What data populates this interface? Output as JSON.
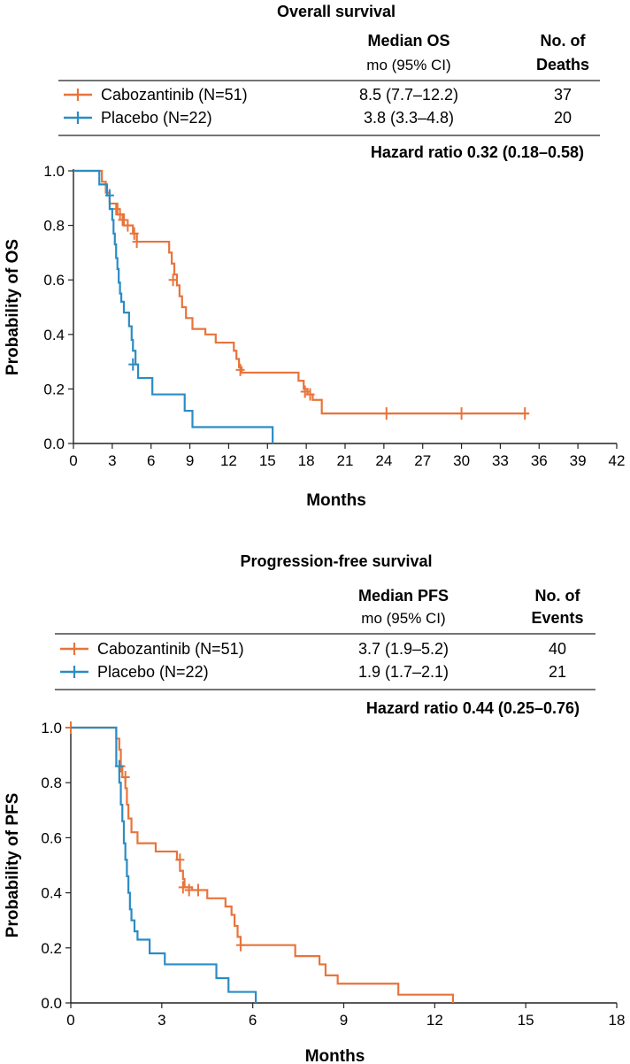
{
  "chart_data": [
    {
      "type": "line",
      "subtype": "kaplan-meier",
      "title": "Overall survival",
      "table": {
        "col1_header": "Median OS",
        "col1_sub": "mo (95% CI)",
        "col2_header_line1": "No. of",
        "col2_header_line2": "Deaths",
        "rows": [
          {
            "label": "Cabozantinib (N=51)",
            "median": "8.5 (7.7–12.2)",
            "count": "37",
            "color": "#E8743B"
          },
          {
            "label": "Placebo (N=22)",
            "median": "3.8 (3.3–4.8)",
            "count": "20",
            "color": "#2B8CC4"
          }
        ]
      },
      "hazard_ratio": "Hazard ratio 0.32 (0.18–0.58)",
      "xlabel": "Months",
      "ylabel": "Probability of OS",
      "xlim": [
        0,
        42
      ],
      "ylim": [
        0,
        1.0
      ],
      "xticks": [
        "0",
        "3",
        "6",
        "9",
        "12",
        "15",
        "18",
        "21",
        "24",
        "27",
        "30",
        "33",
        "36",
        "39",
        "42"
      ],
      "yticks": [
        "0.0",
        "0.2",
        "0.4",
        "0.6",
        "0.8",
        "1.0"
      ],
      "series": [
        {
          "name": "Cabozantinib (N=51)",
          "color": "#E8743B",
          "steps": [
            [
              0,
              1.0
            ],
            [
              2.2,
              0.96
            ],
            [
              2.5,
              0.92
            ],
            [
              2.8,
              0.88
            ],
            [
              3.4,
              0.84
            ],
            [
              3.9,
              0.8
            ],
            [
              4.6,
              0.77
            ],
            [
              4.9,
              0.74
            ],
            [
              7.4,
              0.7
            ],
            [
              7.6,
              0.66
            ],
            [
              7.8,
              0.62
            ],
            [
              8.0,
              0.58
            ],
            [
              8.2,
              0.54
            ],
            [
              8.4,
              0.5
            ],
            [
              8.7,
              0.46
            ],
            [
              9.2,
              0.42
            ],
            [
              10.2,
              0.4
            ],
            [
              11.0,
              0.37
            ],
            [
              12.4,
              0.34
            ],
            [
              12.6,
              0.31
            ],
            [
              12.8,
              0.28
            ],
            [
              13.0,
              0.26
            ],
            [
              17.4,
              0.23
            ],
            [
              17.8,
              0.2
            ],
            [
              18.1,
              0.18
            ],
            [
              18.5,
              0.16
            ],
            [
              19.2,
              0.11
            ],
            [
              35.2,
              0.11
            ]
          ],
          "censors": [
            [
              3.3,
              0.86
            ],
            [
              3.6,
              0.84
            ],
            [
              3.8,
              0.82
            ],
            [
              4.2,
              0.8
            ],
            [
              4.7,
              0.77
            ],
            [
              4.9,
              0.74
            ],
            [
              7.7,
              0.6
            ],
            [
              12.9,
              0.27
            ],
            [
              17.9,
              0.19
            ],
            [
              18.3,
              0.18
            ],
            [
              24.2,
              0.11
            ],
            [
              30.0,
              0.11
            ],
            [
              34.9,
              0.11
            ]
          ]
        },
        {
          "name": "Placebo (N=22)",
          "color": "#2B8CC4",
          "steps": [
            [
              0,
              1.0
            ],
            [
              2.0,
              0.95
            ],
            [
              2.6,
              0.91
            ],
            [
              2.8,
              0.86
            ],
            [
              3.0,
              0.82
            ],
            [
              3.1,
              0.77
            ],
            [
              3.2,
              0.73
            ],
            [
              3.3,
              0.68
            ],
            [
              3.4,
              0.64
            ],
            [
              3.5,
              0.59
            ],
            [
              3.6,
              0.55
            ],
            [
              3.7,
              0.52
            ],
            [
              3.9,
              0.48
            ],
            [
              4.3,
              0.43
            ],
            [
              4.5,
              0.38
            ],
            [
              4.6,
              0.34
            ],
            [
              4.8,
              0.29
            ],
            [
              5.0,
              0.24
            ],
            [
              6.1,
              0.18
            ],
            [
              8.6,
              0.12
            ],
            [
              9.2,
              0.06
            ],
            [
              15.4,
              0.0
            ]
          ],
          "censors": [
            [
              2.8,
              0.91
            ],
            [
              4.6,
              0.29
            ]
          ]
        }
      ]
    },
    {
      "type": "line",
      "subtype": "kaplan-meier",
      "title": "Progression-free survival",
      "table": {
        "col1_header": "Median PFS",
        "col1_sub": "mo (95% CI)",
        "col2_header_line1": "No. of",
        "col2_header_line2": "Events",
        "rows": [
          {
            "label": "Cabozantinib (N=51)",
            "median": "3.7 (1.9–5.2)",
            "count": "40",
            "color": "#E8743B"
          },
          {
            "label": "Placebo (N=22)",
            "median": "1.9 (1.7–2.1)",
            "count": "21",
            "color": "#2B8CC4"
          }
        ]
      },
      "hazard_ratio": "Hazard ratio 0.44 (0.25–0.76)",
      "xlabel": "Months",
      "ylabel": "Probability of PFS",
      "xlim": [
        0,
        18
      ],
      "ylim": [
        0,
        1.0
      ],
      "xticks": [
        "0",
        "3",
        "6",
        "9",
        "12",
        "15",
        "18"
      ],
      "yticks": [
        "0.0",
        "0.2",
        "0.4",
        "0.6",
        "0.8",
        "1.0"
      ],
      "series": [
        {
          "name": "Cabozantinib (N=51)",
          "color": "#E8743B",
          "steps": [
            [
              0,
              1.0
            ],
            [
              1.5,
              0.96
            ],
            [
              1.6,
              0.92
            ],
            [
              1.65,
              0.86
            ],
            [
              1.7,
              0.82
            ],
            [
              1.8,
              0.78
            ],
            [
              1.85,
              0.72
            ],
            [
              1.9,
              0.67
            ],
            [
              2.0,
              0.62
            ],
            [
              2.2,
              0.58
            ],
            [
              2.8,
              0.55
            ],
            [
              3.5,
              0.52
            ],
            [
              3.6,
              0.48
            ],
            [
              3.7,
              0.45
            ],
            [
              3.75,
              0.42
            ],
            [
              4.0,
              0.41
            ],
            [
              4.5,
              0.38
            ],
            [
              5.1,
              0.35
            ],
            [
              5.3,
              0.32
            ],
            [
              5.4,
              0.28
            ],
            [
              5.5,
              0.24
            ],
            [
              5.6,
              0.21
            ],
            [
              7.4,
              0.17
            ],
            [
              8.2,
              0.14
            ],
            [
              8.4,
              0.1
            ],
            [
              8.8,
              0.07
            ],
            [
              10.8,
              0.03
            ],
            [
              12.6,
              0.0
            ]
          ],
          "censors": [
            [
              0,
              1.0
            ],
            [
              1.65,
              0.86
            ],
            [
              1.8,
              0.82
            ],
            [
              3.6,
              0.52
            ],
            [
              3.7,
              0.42
            ],
            [
              3.9,
              0.41
            ],
            [
              4.2,
              0.41
            ],
            [
              5.6,
              0.21
            ]
          ]
        },
        {
          "name": "Placebo (N=22)",
          "color": "#2B8CC4",
          "steps": [
            [
              0,
              1.0
            ],
            [
              1.5,
              0.86
            ],
            [
              1.6,
              0.8
            ],
            [
              1.65,
              0.72
            ],
            [
              1.7,
              0.66
            ],
            [
              1.75,
              0.58
            ],
            [
              1.8,
              0.52
            ],
            [
              1.85,
              0.46
            ],
            [
              1.9,
              0.4
            ],
            [
              1.95,
              0.34
            ],
            [
              2.0,
              0.3
            ],
            [
              2.1,
              0.26
            ],
            [
              2.2,
              0.23
            ],
            [
              2.6,
              0.18
            ],
            [
              3.1,
              0.14
            ],
            [
              4.8,
              0.09
            ],
            [
              5.2,
              0.04
            ],
            [
              6.1,
              0.0
            ]
          ],
          "censors": [
            [
              1.6,
              0.86
            ]
          ]
        }
      ]
    }
  ]
}
